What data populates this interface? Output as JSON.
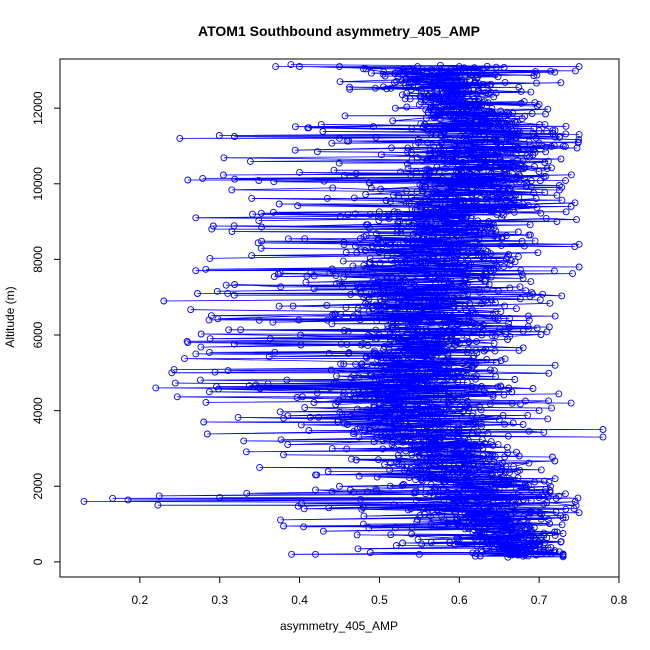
{
  "chart_data": {
    "type": "scatter",
    "title": "ATOM1 Southbound asymmetry_405_AMP",
    "xlabel": "asymmetry_405_AMP",
    "ylabel": "Altitude (m)",
    "xlim": [
      0.1,
      0.8
    ],
    "ylim": [
      -400,
      13300
    ],
    "xticks": [
      0.2,
      0.3,
      0.4,
      0.5,
      0.6,
      0.7,
      0.8
    ],
    "yticks": [
      0,
      2000,
      4000,
      6000,
      8000,
      10000,
      12000
    ],
    "grid": false,
    "legend": "none",
    "marker": "open-circle",
    "connected_by_lines": true,
    "color": "#0000ff",
    "profile_envelope": [
      {
        "y": 200,
        "xmin": 0.39,
        "xmax": 0.73,
        "center": 0.67
      },
      {
        "y": 600,
        "xmin": 0.44,
        "xmax": 0.73,
        "center": 0.66
      },
      {
        "y": 1000,
        "xmin": 0.38,
        "xmax": 0.73,
        "center": 0.64
      },
      {
        "y": 1600,
        "xmin": 0.13,
        "xmax": 0.75,
        "center": 0.62
      },
      {
        "y": 2200,
        "xmin": 0.36,
        "xmax": 0.74,
        "center": 0.6
      },
      {
        "y": 3000,
        "xmin": 0.3,
        "xmax": 0.72,
        "center": 0.57
      },
      {
        "y": 3600,
        "xmin": 0.27,
        "xmax": 0.72,
        "center": 0.55
      },
      {
        "y": 4200,
        "xmin": 0.24,
        "xmax": 0.74,
        "center": 0.55
      },
      {
        "y": 5000,
        "xmin": 0.24,
        "xmax": 0.72,
        "center": 0.55
      },
      {
        "y": 5800,
        "xmin": 0.26,
        "xmax": 0.72,
        "center": 0.56
      },
      {
        "y": 6800,
        "xmin": 0.23,
        "xmax": 0.73,
        "center": 0.56
      },
      {
        "y": 7800,
        "xmin": 0.27,
        "xmax": 0.75,
        "center": 0.56
      },
      {
        "y": 8600,
        "xmin": 0.29,
        "xmax": 0.75,
        "center": 0.57
      },
      {
        "y": 9400,
        "xmin": 0.28,
        "xmax": 0.75,
        "center": 0.6
      },
      {
        "y": 10200,
        "xmin": 0.27,
        "xmax": 0.74,
        "center": 0.62
      },
      {
        "y": 11200,
        "xmin": 0.26,
        "xmax": 0.75,
        "center": 0.64
      },
      {
        "y": 12000,
        "xmin": 0.5,
        "xmax": 0.71,
        "center": 0.6
      },
      {
        "y": 13100,
        "xmin": 0.37,
        "xmax": 0.75,
        "center": 0.57
      }
    ],
    "series": [
      {
        "points": [
          {
            "x": 0.39,
            "y": 200
          },
          {
            "x": 0.42,
            "y": 200
          },
          {
            "x": 0.55,
            "y": 200
          },
          {
            "x": 0.62,
            "y": 150
          },
          {
            "x": 0.68,
            "y": 150
          },
          {
            "x": 0.73,
            "y": 200
          },
          {
            "x": 0.66,
            "y": 300
          },
          {
            "x": 0.7,
            "y": 400
          },
          {
            "x": 0.64,
            "y": 500
          },
          {
            "x": 0.6,
            "y": 600
          },
          {
            "x": 0.72,
            "y": 700
          },
          {
            "x": 0.52,
            "y": 900
          },
          {
            "x": 0.38,
            "y": 950
          },
          {
            "x": 0.48,
            "y": 1000
          },
          {
            "x": 0.66,
            "y": 1100
          },
          {
            "x": 0.75,
            "y": 1300
          },
          {
            "x": 0.13,
            "y": 1600
          },
          {
            "x": 0.3,
            "y": 1700
          },
          {
            "x": 0.7,
            "y": 1700
          },
          {
            "x": 0.58,
            "y": 1900
          },
          {
            "x": 0.72,
            "y": 2200
          },
          {
            "x": 0.42,
            "y": 2300
          },
          {
            "x": 0.35,
            "y": 2500
          },
          {
            "x": 0.65,
            "y": 2600
          },
          {
            "x": 0.78,
            "y": 3300
          },
          {
            "x": 0.78,
            "y": 3500
          },
          {
            "x": 0.33,
            "y": 3200
          },
          {
            "x": 0.28,
            "y": 3700
          },
          {
            "x": 0.55,
            "y": 3800
          },
          {
            "x": 0.7,
            "y": 4000
          },
          {
            "x": 0.74,
            "y": 4200
          },
          {
            "x": 0.22,
            "y": 4600
          },
          {
            "x": 0.24,
            "y": 5000
          },
          {
            "x": 0.5,
            "y": 4800
          },
          {
            "x": 0.6,
            "y": 4900
          },
          {
            "x": 0.72,
            "y": 5200
          },
          {
            "x": 0.27,
            "y": 5500
          },
          {
            "x": 0.26,
            "y": 5800
          },
          {
            "x": 0.55,
            "y": 5900
          },
          {
            "x": 0.68,
            "y": 6100
          },
          {
            "x": 0.72,
            "y": 6500
          },
          {
            "x": 0.23,
            "y": 6900
          },
          {
            "x": 0.31,
            "y": 7100
          },
          {
            "x": 0.56,
            "y": 7200
          },
          {
            "x": 0.75,
            "y": 7800
          },
          {
            "x": 0.27,
            "y": 7700
          },
          {
            "x": 0.34,
            "y": 8100
          },
          {
            "x": 0.5,
            "y": 8200
          },
          {
            "x": 0.75,
            "y": 8400
          },
          {
            "x": 0.29,
            "y": 8800
          },
          {
            "x": 0.6,
            "y": 8800
          },
          {
            "x": 0.27,
            "y": 9100
          },
          {
            "x": 0.47,
            "y": 9200
          },
          {
            "x": 0.74,
            "y": 9400
          },
          {
            "x": 0.65,
            "y": 9700
          },
          {
            "x": 0.26,
            "y": 10100
          },
          {
            "x": 0.4,
            "y": 10300
          },
          {
            "x": 0.71,
            "y": 10400
          },
          {
            "x": 0.68,
            "y": 10900
          },
          {
            "x": 0.25,
            "y": 11200
          },
          {
            "x": 0.45,
            "y": 11200
          },
          {
            "x": 0.75,
            "y": 11300
          },
          {
            "x": 0.6,
            "y": 11600
          },
          {
            "x": 0.52,
            "y": 12000
          },
          {
            "x": 0.7,
            "y": 12100
          },
          {
            "x": 0.58,
            "y": 12400
          },
          {
            "x": 0.55,
            "y": 12900
          },
          {
            "x": 0.37,
            "y": 13100
          },
          {
            "x": 0.45,
            "y": 13100
          },
          {
            "x": 0.6,
            "y": 13100
          },
          {
            "x": 0.75,
            "y": 13100
          }
        ]
      }
    ]
  }
}
